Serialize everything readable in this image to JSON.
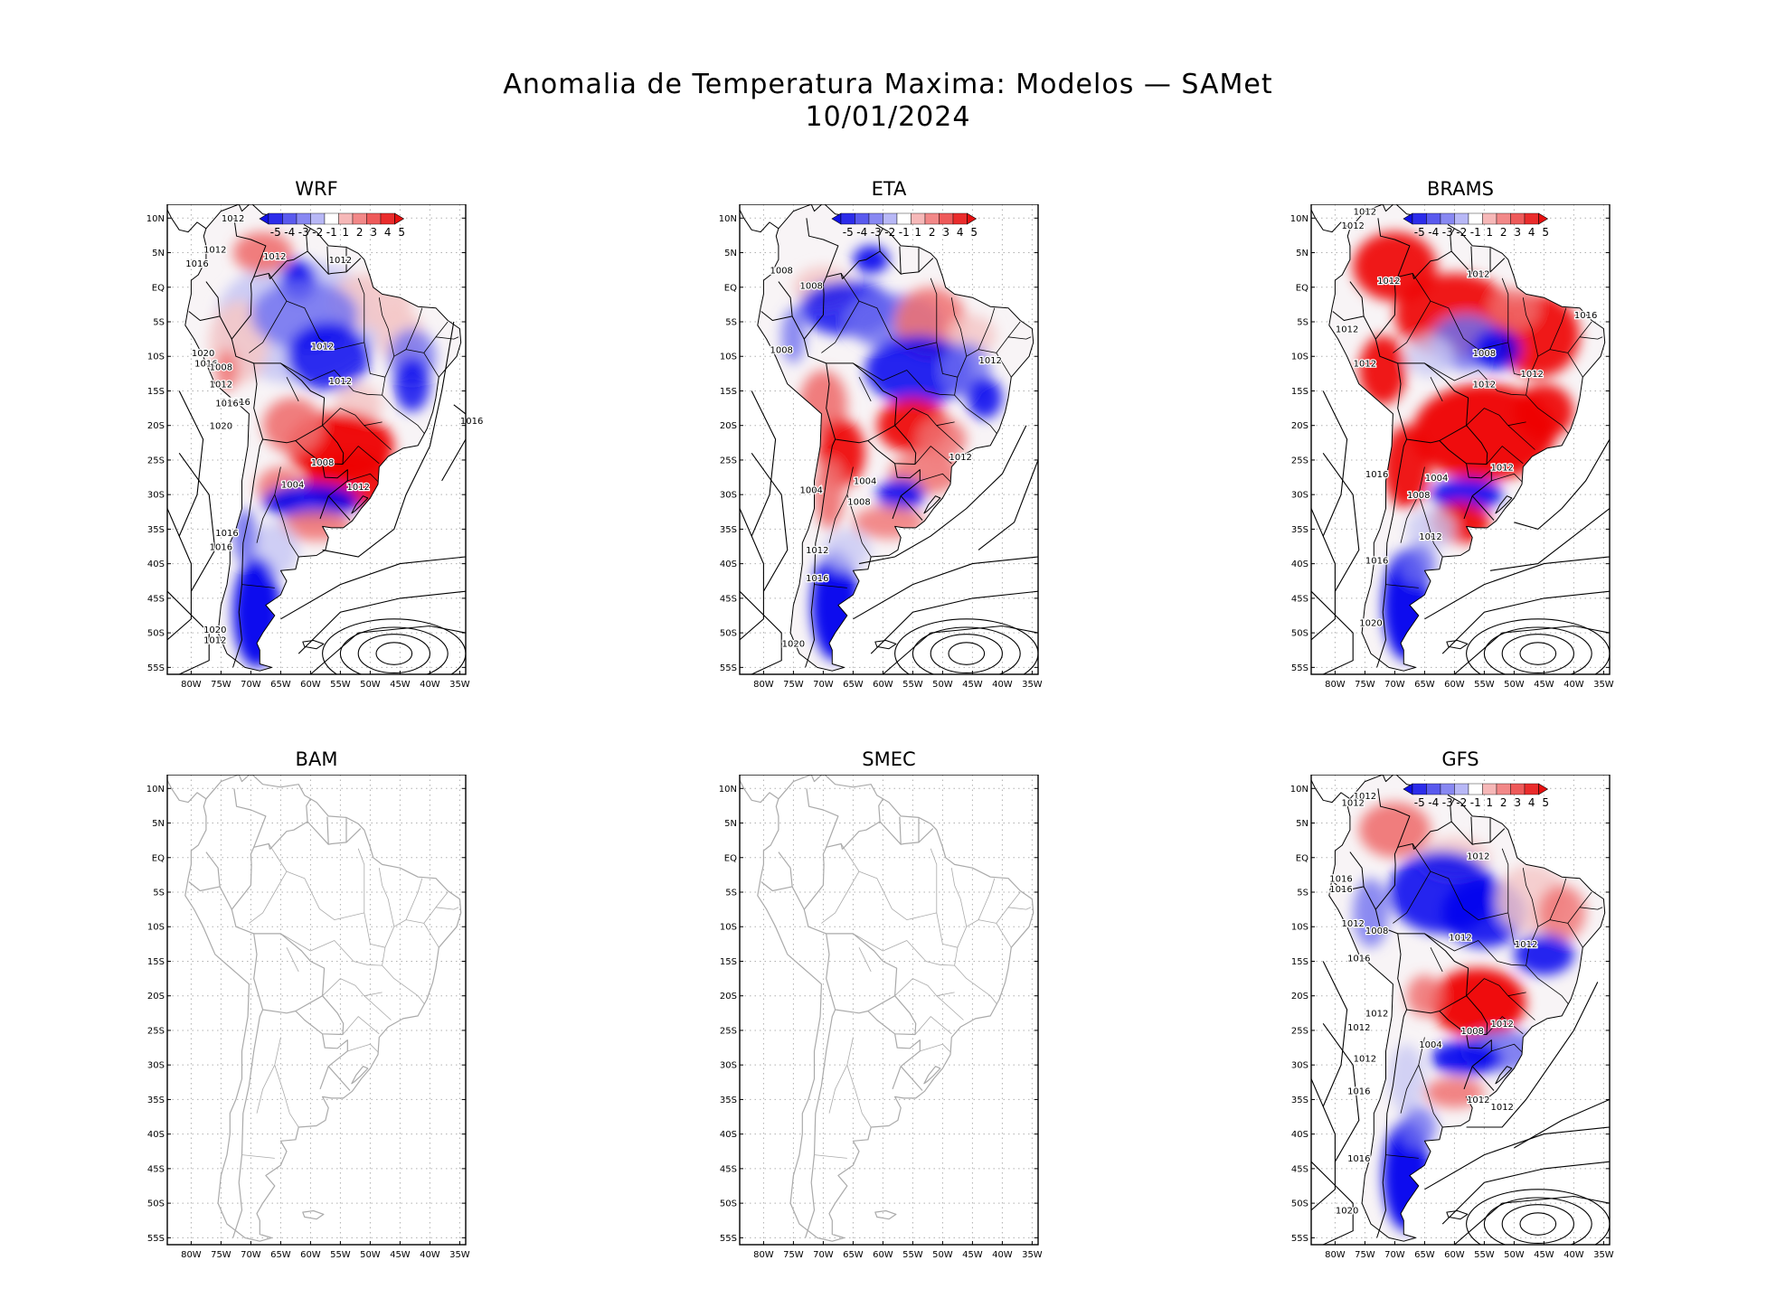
{
  "title": "Anomalia de Temperatura Maxima: Modelos — SAMet",
  "date": "10/01/2024",
  "colors": {
    "neg_strong": "#0000ee",
    "neg_mid": "#6f6ff0",
    "neg_light": "#c8c8f4",
    "pos_light": "#f4c8c8",
    "pos_mid": "#f07070",
    "pos_strong": "#ee0000",
    "coast_gray": "#aaaaaa",
    "isobar": "#000000"
  },
  "colorbar": {
    "labels": [
      "-5",
      "-4",
      "-3",
      "-2",
      "-1",
      "1",
      "2",
      "3",
      "4",
      "5"
    ]
  },
  "axes": {
    "lat_labels": [
      "10N",
      "5N",
      "EQ",
      "5S",
      "10S",
      "15S",
      "20S",
      "25S",
      "30S",
      "35S",
      "40S",
      "45S",
      "50S",
      "55S"
    ],
    "lon_labels": [
      "80W",
      "75W",
      "70W",
      "65W",
      "60W",
      "55W",
      "50W",
      "45W",
      "40W",
      "35W"
    ],
    "lat_range": [
      -56,
      12
    ],
    "lon_range": [
      -84,
      -34
    ],
    "grid": "dotted"
  },
  "panels": [
    {
      "name": "WRF",
      "has_data": true,
      "pattern": "wrf",
      "isobar_labels": [
        "1012",
        "1012",
        "1016",
        "1012",
        "1012",
        "1012",
        "1020",
        "1016",
        "1008",
        "1012",
        "1012",
        "1016",
        "1016",
        "1016",
        "1020",
        "1008",
        "1004",
        "1012",
        "1016",
        "1016",
        "1016",
        "1020",
        "1012"
      ]
    },
    {
      "name": "ETA",
      "has_data": true,
      "pattern": "eta",
      "isobar_labels": [
        "1008",
        "1008",
        "1008",
        "1012",
        "1004",
        "1004",
        "1008",
        "1012",
        "1012",
        "1016",
        "1020"
      ]
    },
    {
      "name": "BRAMS",
      "has_data": true,
      "pattern": "brams",
      "isobar_labels": [
        "1012",
        "1012",
        "1012",
        "1012",
        "1016",
        "1012",
        "1012",
        "1008",
        "1012",
        "1012",
        "1012",
        "1016",
        "1004",
        "1008",
        "1012",
        "1016",
        "1020"
      ]
    },
    {
      "name": "BAM",
      "has_data": false,
      "pattern": "none",
      "isobar_labels": []
    },
    {
      "name": "SMEC",
      "has_data": false,
      "pattern": "none",
      "isobar_labels": []
    },
    {
      "name": "GFS",
      "has_data": true,
      "pattern": "gfs",
      "isobar_labels": [
        "1012",
        "1012",
        "1012",
        "1016",
        "1016",
        "1012",
        "1008",
        "1012",
        "1012",
        "1016",
        "1012",
        "1012",
        "1004",
        "1008",
        "1012",
        "1012",
        "1016",
        "1012",
        "1012",
        "1016",
        "1020"
      ]
    }
  ]
}
